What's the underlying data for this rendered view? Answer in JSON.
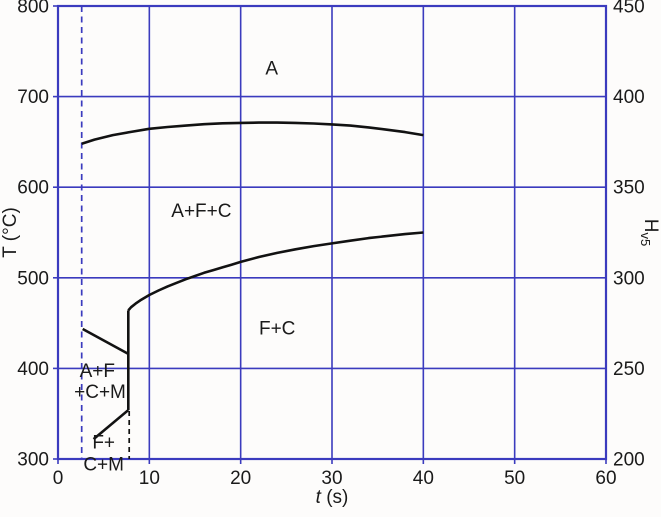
{
  "figure": {
    "background": "#fdfcfb",
    "grid_color": "#3b3bbe",
    "curve_color": "#121212",
    "text_color": "#1a1a1a"
  },
  "chart_data": {
    "type": "line",
    "description": "Time-temperature transformation diagram with hardness axis",
    "xlabel": {
      "variable": "t",
      "unit": "(s)"
    },
    "ylabel_left": "T (°C)",
    "ylabel_right": {
      "main": "H",
      "sub": "v5"
    },
    "x_axis": {
      "min": 0,
      "max": 60,
      "ticks": [
        0,
        10,
        20,
        30,
        40,
        50,
        60
      ]
    },
    "y_axis_left": {
      "min": 300,
      "max": 800,
      "ticks": [
        800,
        700,
        600,
        500,
        400,
        300
      ]
    },
    "y_axis_right": {
      "min": 200,
      "max": 450,
      "ticks": [
        450,
        400,
        350,
        300,
        250,
        200
      ]
    },
    "grid": true,
    "legend": false,
    "series": [
      {
        "name": "quench-time-marker-dashed",
        "style": "dashed",
        "color": "#3b3bbe",
        "width": 1.7,
        "dash": "6 4.5",
        "points": [
          [
            2.6,
            800
          ],
          [
            2.6,
            300
          ]
        ]
      },
      {
        "name": "transformation-end-marker-dashed",
        "style": "dashed",
        "color": "#121212",
        "width": 1.7,
        "dash": "5 4",
        "points": [
          [
            7.8,
            353
          ],
          [
            7.8,
            300
          ]
        ]
      },
      {
        "name": "transformation-start-curve",
        "style": "solid",
        "color": "#121212",
        "width": 2.6,
        "points": [
          [
            2.6,
            648
          ],
          [
            4,
            652.5
          ],
          [
            6,
            657.5
          ],
          [
            8,
            661
          ],
          [
            10,
            664.5
          ],
          [
            12,
            666.5
          ],
          [
            14,
            668
          ],
          [
            16,
            669.5
          ],
          [
            18,
            670.5
          ],
          [
            20,
            671
          ],
          [
            22,
            671.3
          ],
          [
            24,
            671.3
          ],
          [
            26,
            671
          ],
          [
            28,
            670.3
          ],
          [
            30,
            669.3
          ],
          [
            32,
            668
          ],
          [
            34,
            666
          ],
          [
            36,
            663.5
          ],
          [
            38,
            660.8
          ],
          [
            40,
            657.5
          ]
        ]
      },
      {
        "name": "transformation-finish-curve",
        "style": "solid",
        "color": "#121212",
        "width": 2.6,
        "points": [
          [
            7.7,
            464
          ],
          [
            8,
            467.5
          ],
          [
            8.5,
            471.5
          ],
          [
            9,
            475
          ],
          [
            10,
            481
          ],
          [
            11,
            486
          ],
          [
            12,
            490.5
          ],
          [
            13,
            494.5
          ],
          [
            14,
            498.5
          ],
          [
            15,
            502
          ],
          [
            16,
            505.5
          ],
          [
            17,
            508.5
          ],
          [
            18,
            511.5
          ],
          [
            19,
            514.5
          ],
          [
            20,
            517.5
          ],
          [
            22,
            523
          ],
          [
            24,
            527.5
          ],
          [
            26,
            531.5
          ],
          [
            28,
            535
          ],
          [
            30,
            538
          ],
          [
            32,
            541
          ],
          [
            34,
            543.8
          ],
          [
            36,
            546
          ],
          [
            38,
            548.2
          ],
          [
            40,
            550
          ]
        ]
      },
      {
        "name": "martensite-vertical-boundary",
        "style": "solid",
        "color": "#121212",
        "width": 2.6,
        "points": [
          [
            7.7,
            464
          ],
          [
            7.7,
            354
          ]
        ]
      },
      {
        "name": "martensite-upper-boundary",
        "style": "solid",
        "color": "#121212",
        "width": 2.6,
        "points": [
          [
            2.7,
            443.5
          ],
          [
            7.7,
            416
          ]
        ]
      },
      {
        "name": "martensite-lower-boundary",
        "style": "solid",
        "color": "#121212",
        "width": 2.6,
        "points": [
          [
            7.7,
            354
          ],
          [
            3.9,
            322
          ]
        ]
      }
    ],
    "region_labels": [
      {
        "text": "A",
        "t": 23.4,
        "T": 731
      },
      {
        "text": "A+F+C",
        "t": 15.7,
        "T": 574
      },
      {
        "text": "F+C",
        "t": 24.0,
        "T": 444
      },
      {
        "text": "A+F",
        "t": 4.3,
        "T": 397
      },
      {
        "text": "+C+M",
        "t": 4.6,
        "T": 374
      },
      {
        "text": "F+",
        "t": 5.0,
        "T": 318
      },
      {
        "text": "C+M",
        "t": 5.0,
        "T": 294
      }
    ]
  }
}
